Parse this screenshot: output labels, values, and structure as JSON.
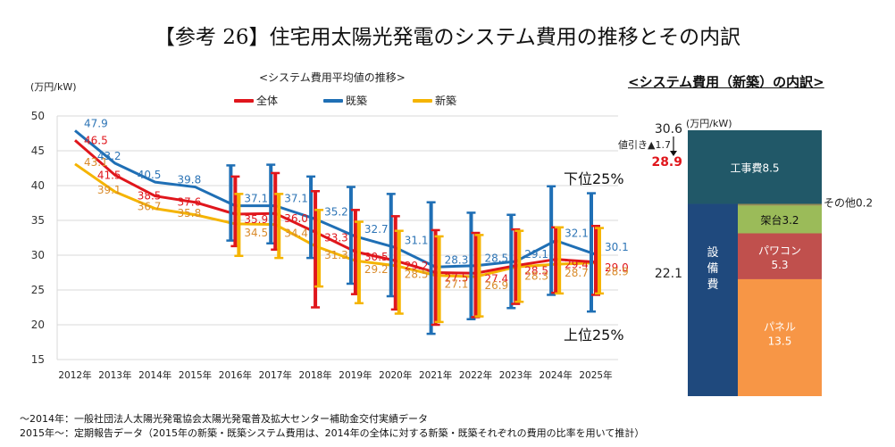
{
  "title": "【参考 26】住宅用太陽光発電のシステム費用の推移とその内訳",
  "chart_data": [
    {
      "type": "line",
      "title": "<システム費用平均値の推移>",
      "ylabel": "(万円/kW)",
      "xlabel": "",
      "ylim": [
        15,
        50
      ],
      "yticks": [
        15,
        20,
        25,
        30,
        35,
        40,
        45,
        50
      ],
      "grid": true,
      "legend_position": "top",
      "categories": [
        "2012年",
        "2013年",
        "2014年",
        "2015年",
        "2016年",
        "2017年",
        "2018年",
        "2019年",
        "2020年",
        "2021年",
        "2022年",
        "2023年",
        "2024年",
        "2025年"
      ],
      "series": [
        {
          "name": "全体",
          "color": "#e0161c",
          "values": [
            46.5,
            41.5,
            38.5,
            37.6,
            35.9,
            36.0,
            33.3,
            30.5,
            29.2,
            27.5,
            27.4,
            28.5,
            29.4,
            29.0
          ],
          "error_high": [
            null,
            null,
            null,
            null,
            41.3,
            41.8,
            39.2,
            36.5,
            35.6,
            33.6,
            33.2,
            33.7,
            34.0,
            34.2
          ],
          "error_low": [
            null,
            null,
            null,
            null,
            31.3,
            30.8,
            22.5,
            24.4,
            22.2,
            20.0,
            21.1,
            23.0,
            24.6,
            24.3
          ]
        },
        {
          "name": "既築",
          "color": "#1f6fb5",
          "values": [
            47.9,
            43.2,
            40.5,
            39.8,
            37.1,
            37.1,
            35.2,
            32.7,
            31.1,
            28.3,
            28.5,
            29.1,
            32.1,
            30.1
          ],
          "error_high": [
            null,
            null,
            null,
            null,
            42.9,
            43.0,
            41.3,
            39.8,
            38.8,
            37.6,
            36.1,
            35.8,
            39.9,
            38.9
          ],
          "error_low": [
            null,
            null,
            null,
            null,
            32.1,
            31.7,
            29.6,
            25.9,
            24.1,
            18.7,
            20.8,
            22.4,
            24.3,
            21.9
          ]
        },
        {
          "name": "新築",
          "color": "#f5b400",
          "values": [
            43.1,
            39.1,
            36.7,
            35.8,
            34.5,
            34.4,
            31.3,
            29.2,
            28.5,
            27.1,
            26.9,
            28.3,
            28.7,
            28.9
          ],
          "error_high": [
            null,
            null,
            null,
            null,
            38.8,
            38.8,
            36.5,
            34.8,
            33.5,
            32.7,
            32.9,
            33.5,
            34.0,
            33.9
          ],
          "error_low": [
            null,
            null,
            null,
            null,
            29.9,
            29.6,
            25.5,
            23.1,
            21.6,
            20.4,
            21.2,
            23.3,
            24.5,
            24.5
          ]
        }
      ],
      "annotations": [
        "下位25%",
        "上位25%"
      ]
    },
    {
      "type": "bar",
      "title": "<システム費用（新築）の内訳>",
      "ylabel": "(万円/kW)",
      "stacked": true,
      "total_before_discount": "30.6",
      "discount_label": "値引き▲1.7",
      "total_after_discount": "28.9",
      "equipment_total": "22.1",
      "segments": [
        {
          "name": "工事費",
          "value": 8.5,
          "label": "工事費8.5",
          "color": "#215868"
        },
        {
          "name": "その他",
          "value": 0.2,
          "label": "その他0.2",
          "color": "#948a54"
        },
        {
          "name": "架台",
          "value": 3.2,
          "label": "架台3.2",
          "color": "#9bbb59"
        },
        {
          "name": "パワコン",
          "value": 5.3,
          "label": "パワコン",
          "label2": "5.3",
          "color": "#c0504d"
        },
        {
          "name": "パネル",
          "value": 13.5,
          "label": "パネル",
          "label2": "13.5",
          "color": "#f79646"
        }
      ],
      "equipment_group": {
        "name": "設備費",
        "label": "設備費",
        "color": "#1f497d"
      }
    }
  ],
  "footer": {
    "line1": "～2014年：一般社団法人太陽光発電協会太陽光発電普及拡大センター補助金交付実績データ",
    "line2": "2015年～：定期報告データ（2015年の新築・既築システム費用は、2014年の全体に対する新築・既築それぞれの費用の比率を用いて推計）"
  }
}
